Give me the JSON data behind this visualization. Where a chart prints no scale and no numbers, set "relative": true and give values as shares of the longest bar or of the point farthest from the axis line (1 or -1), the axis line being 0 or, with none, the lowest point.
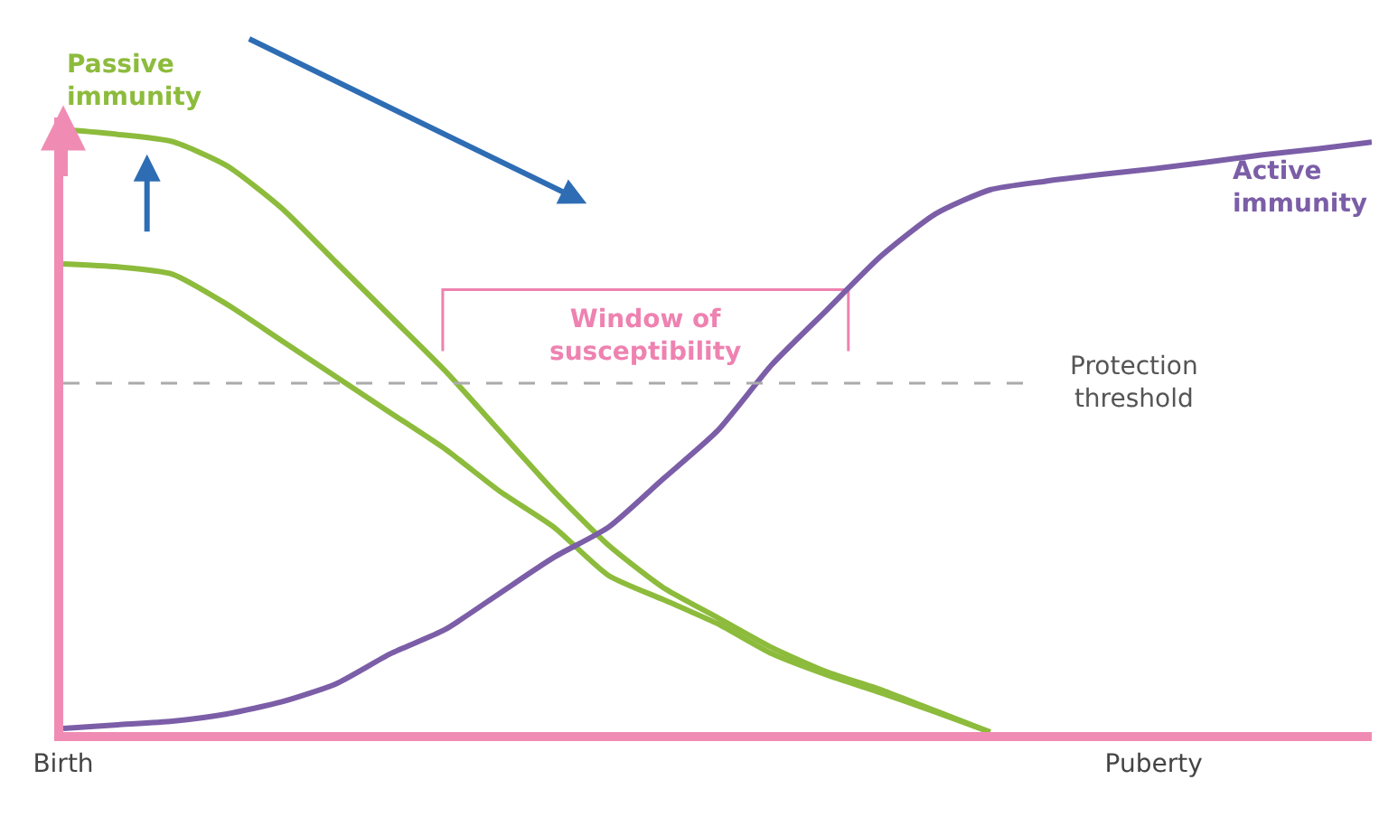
{
  "chart_data": {
    "type": "line",
    "relative": true,
    "categories": [
      "Birth",
      null,
      null,
      null,
      null,
      null,
      null,
      null,
      null,
      null,
      null,
      null,
      null,
      null,
      null,
      null,
      null,
      null,
      null,
      null,
      "Puberty",
      null,
      null,
      null,
      null
    ],
    "series": [
      {
        "name": "Passive immunity",
        "color": "#8dbb3c",
        "values": [
          1.0,
          0.992,
          0.98,
          0.94,
          0.87,
          0.78,
          0.69,
          0.6,
          0.5,
          0.4,
          0.31,
          0.24,
          0.19,
          0.14,
          0.1,
          0.07,
          0.035,
          0,
          null,
          null,
          null,
          null,
          null,
          null,
          null
        ]
      },
      {
        "color": "#8dbb3c",
        "values": [
          0.777,
          0.772,
          0.76,
          0.71,
          0.65,
          0.59,
          0.53,
          0.47,
          0.4,
          0.34,
          0.26,
          0.22,
          0.18,
          0.13,
          0.095,
          0.065,
          0.033,
          0,
          null,
          null,
          null,
          null,
          null,
          null,
          null
        ]
      },
      {
        "name": "Active immunity",
        "color": "#7b5ea7",
        "values": [
          0.006,
          0.012,
          0.018,
          0.03,
          0.05,
          0.08,
          0.13,
          0.17,
          0.23,
          0.29,
          0.34,
          0.42,
          0.5,
          0.61,
          0.7,
          0.79,
          0.86,
          0.9,
          0.914,
          0.925,
          0.935,
          0.946,
          0.958,
          0.968,
          0.979
        ]
      }
    ],
    "ref_lines": [
      {
        "axis": "y",
        "value": 0.579,
        "label": "Protection\nthreshold",
        "color": "#aaaaaa",
        "line_style": "dashed"
      }
    ],
    "annotations": [
      "Window of\nsusceptibility"
    ],
    "grid": false,
    "legend": false,
    "marker": "none",
    "line_style": "solid"
  }
}
